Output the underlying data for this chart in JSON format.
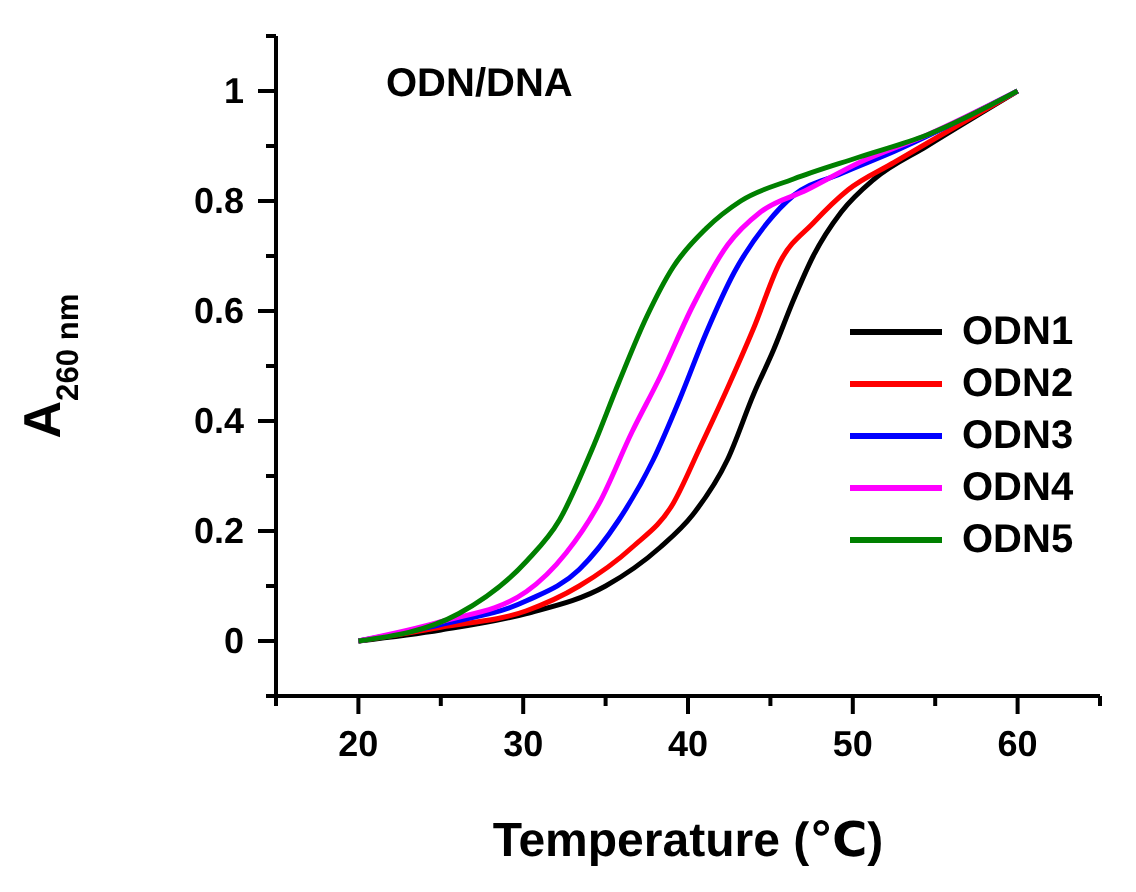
{
  "chart_data": {
    "type": "line",
    "title": "ODN/DNA",
    "xlabel": "Temperature (℃)",
    "ylabel": "A$_{260 nm}$",
    "xlim": [
      15,
      65
    ],
    "xticks": [
      {
        "value": 15,
        "label": null
      },
      20,
      {
        "value": 25,
        "label": null
      },
      30,
      {
        "value": 35,
        "label": null
      },
      40,
      {
        "value": 45,
        "label": null
      },
      50,
      {
        "value": 55,
        "label": null
      },
      60,
      {
        "value": 65,
        "label": null
      }
    ],
    "ylim": [
      -0.1,
      1.1
    ],
    "yticks": [
      {
        "value": -0.1,
        "label": null
      },
      0,
      {
        "value": 0.1,
        "label": null
      },
      0.2,
      {
        "value": 0.3,
        "label": null
      },
      0.4,
      {
        "value": 0.5,
        "label": null
      },
      0.6,
      {
        "value": 0.7,
        "label": null
      },
      0.8,
      {
        "value": 0.9,
        "label": null
      },
      1,
      {
        "value": 1.1,
        "label": null
      }
    ],
    "grid": false,
    "legend": "right",
    "marker": "none",
    "line_style": "solid",
    "series": [
      {
        "name": "ODN1",
        "color": "#000000",
        "x": [
          20,
          25,
          30.2,
          35,
          38.3,
          40.3,
          42.4,
          44,
          45.2,
          46.4,
          47.6,
          49.3,
          51.3,
          54.5,
          60
        ],
        "values": [
          0,
          0.02,
          0.05,
          0.1,
          0.17,
          0.23,
          0.33,
          0.45,
          0.53,
          0.62,
          0.7,
          0.78,
          0.84,
          0.9,
          1
        ]
      },
      {
        "name": "ODN2",
        "color": "#ff0000",
        "x": [
          20,
          25,
          30.2,
          33.4,
          36.6,
          39.1,
          40.7,
          42.4,
          44,
          45.6,
          47.6,
          49.7,
          52.5,
          60
        ],
        "values": [
          0,
          0.025,
          0.055,
          0.1,
          0.17,
          0.25,
          0.35,
          0.46,
          0.57,
          0.69,
          0.76,
          0.82,
          0.87,
          1
        ]
      },
      {
        "name": "ODN3",
        "color": "#0000ff",
        "x": [
          20,
          25,
          30.2,
          33.4,
          35.8,
          37.9,
          39.5,
          41.1,
          42.8,
          44.8,
          46.4,
          49.3,
          52.5,
          60
        ],
        "values": [
          0,
          0.03,
          0.073,
          0.13,
          0.22,
          0.33,
          0.44,
          0.56,
          0.67,
          0.76,
          0.81,
          0.85,
          0.89,
          1
        ]
      },
      {
        "name": "ODN4",
        "color": "#ff00ff",
        "x": [
          20,
          25,
          30.2,
          32.6,
          34.6,
          36.6,
          38.3,
          40.3,
          42.4,
          44.4,
          47.2,
          50.4,
          54.5,
          60
        ],
        "values": [
          0,
          0.035,
          0.09,
          0.16,
          0.25,
          0.38,
          0.48,
          0.61,
          0.72,
          0.78,
          0.82,
          0.87,
          0.92,
          1
        ]
      },
      {
        "name": "ODN5",
        "color": "#008000",
        "x": [
          20,
          26.1,
          30.2,
          32.2,
          34.2,
          35.8,
          37.5,
          39.1,
          41.1,
          43.2,
          46.4,
          50.4,
          54.5,
          60
        ],
        "values": [
          0,
          0.05,
          0.145,
          0.22,
          0.35,
          0.47,
          0.59,
          0.68,
          0.75,
          0.8,
          0.84,
          0.88,
          0.92,
          1
        ]
      }
    ]
  }
}
